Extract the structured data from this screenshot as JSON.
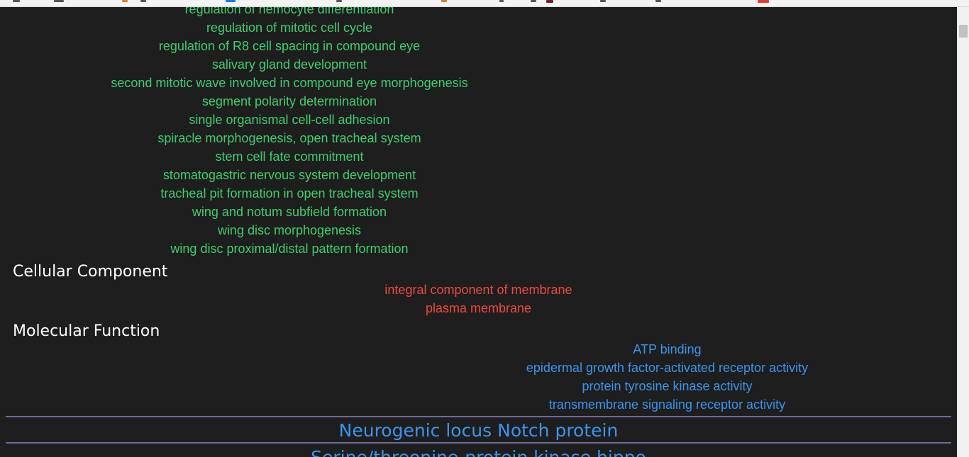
{
  "biological_process_terms": [
    "regulation of hemocyte differentiation",
    "regulation of mitotic cell cycle",
    "regulation of R8 cell spacing in compound eye",
    "salivary gland development",
    "second mitotic wave involved in compound eye morphogenesis",
    "segment polarity determination",
    "single organismal cell-cell adhesion",
    "spiracle morphogenesis, open tracheal system",
    "stem cell fate commitment",
    "stomatogastric nervous system development",
    "tracheal pit formation in open tracheal system",
    "wing and notum subfield formation",
    "wing disc morphogenesis",
    "wing disc proximal/distal pattern formation"
  ],
  "cellular_component": {
    "title": "Cellular Component",
    "terms": [
      "integral component of membrane",
      "plasma membrane"
    ]
  },
  "molecular_function": {
    "title": "Molecular Function",
    "terms": [
      "ATP binding",
      "epidermal growth factor-activated receptor activity",
      "protein tyrosine kinase activity",
      "transmembrane signaling receptor activity"
    ]
  },
  "proteins": [
    "Neurogenic locus Notch protein",
    "Serine/threonine-protein kinase hippo"
  ],
  "colors": {
    "background": "#1e1e1e",
    "biological_process": "#3ecf6e",
    "cellular_component": "#ef4a3c",
    "molecular_function": "#3a95ee",
    "section_title": "#ffffff",
    "divider": "#6d6a9a"
  }
}
